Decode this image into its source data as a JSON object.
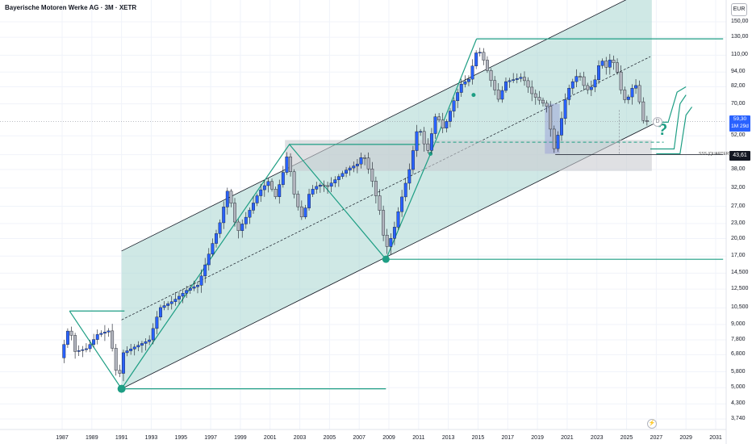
{
  "header": {
    "title": "Bayerische Motoren Werke AG · 3M · XETR",
    "currency": "EUR"
  },
  "price_tag": {
    "value": "59,30",
    "countdown": "1M 29d"
  },
  "level_tag": {
    "value": "43,61",
    "label": "SSS (QUARTER)"
  },
  "markers": {
    "question": "?",
    "d_tag": "D",
    "bolt": "⚡"
  },
  "colors": {
    "up": "#2962ff",
    "down": "#b2b5be",
    "channel_fill": "#a8d5cf",
    "teal": "#1e9e84",
    "box_grey": "#c9cbd1"
  },
  "chart_data": {
    "type": "candlestick",
    "title": "Bayerische Motoren Werke AG · 3M · XETR",
    "y_scale": "log",
    "ylim": [
      3.4,
      175
    ],
    "xlim": [
      1986,
      2032
    ],
    "y_ticks": [
      "150,00",
      "130,00",
      "110,00",
      "94,00",
      "82,00",
      "70,00",
      "52,00",
      "43,61",
      "38,00",
      "32,00",
      "27,00",
      "23,00",
      "20,00",
      "17,00",
      "14,500",
      "12,500",
      "10,500",
      "9,000",
      "7,800",
      "6,800",
      "5,800",
      "5,000",
      "4,300",
      "3,740"
    ],
    "y_tick_values": [
      150,
      130,
      110,
      94,
      82,
      70,
      52,
      43.61,
      38,
      32,
      27,
      23,
      20,
      17,
      14.5,
      12.5,
      10.5,
      9,
      7.8,
      6.8,
      5.8,
      5.0,
      4.3,
      3.74
    ],
    "x_ticks": [
      "1987",
      "1989",
      "1991",
      "1993",
      "1995",
      "1997",
      "1999",
      "2001",
      "2003",
      "2005",
      "2007",
      "2009",
      "2011",
      "2013",
      "2015",
      "2017",
      "2019",
      "2021",
      "2023",
      "2025",
      "2027",
      "2029",
      "2031"
    ],
    "x_tick_values": [
      1987,
      1989,
      1991,
      1993,
      1995,
      1997,
      1999,
      2001,
      2003,
      2005,
      2007,
      2009,
      2011,
      2013,
      2015,
      2017,
      2019,
      2021,
      2023,
      2025,
      2027,
      2029,
      2031
    ],
    "anchors": [
      [
        1987,
        6.6
      ],
      [
        1987.6,
        8.9
      ],
      [
        1988,
        7.0
      ],
      [
        1988.8,
        7.2
      ],
      [
        1989.5,
        8.2
      ],
      [
        1990.3,
        8.5
      ],
      [
        1990.9,
        5.2
      ],
      [
        1991.2,
        6.9
      ],
      [
        1992,
        7.3
      ],
      [
        1993,
        7.8
      ],
      [
        1993.7,
        10.5
      ],
      [
        1994.6,
        11.2
      ],
      [
        1995.6,
        12.5
      ],
      [
        1996.3,
        13.0
      ],
      [
        1996.8,
        16.0
      ],
      [
        1997.3,
        19.5
      ],
      [
        1997.7,
        22.5
      ],
      [
        1998.3,
        32.0
      ],
      [
        1998.9,
        21.0
      ],
      [
        1999.6,
        25.0
      ],
      [
        2000.4,
        31.0
      ],
      [
        2001.0,
        34.0
      ],
      [
        2001.5,
        29.5
      ],
      [
        2002.0,
        37.0
      ],
      [
        2002.3,
        44.0
      ],
      [
        2002.8,
        29.0
      ],
      [
        2003.3,
        24.0
      ],
      [
        2003.8,
        31.0
      ],
      [
        2004.4,
        33.0
      ],
      [
        2005.0,
        32.5
      ],
      [
        2005.6,
        35.0
      ],
      [
        2006.3,
        38.0
      ],
      [
        2007.0,
        40.0
      ],
      [
        2007.4,
        44.0
      ],
      [
        2007.9,
        36.0
      ],
      [
        2008.5,
        26.0
      ],
      [
        2008.9,
        18.0
      ],
      [
        2009.4,
        21.0
      ],
      [
        2009.9,
        28.0
      ],
      [
        2010.5,
        38.0
      ],
      [
        2011.1,
        58.0
      ],
      [
        2011.7,
        44.0
      ],
      [
        2012.3,
        64.0
      ],
      [
        2012.8,
        55.0
      ],
      [
        2013.5,
        72.0
      ],
      [
        2014.0,
        84.0
      ],
      [
        2014.5,
        88.0
      ],
      [
        2015.1,
        118.0
      ],
      [
        2015.5,
        105.0
      ],
      [
        2015.9,
        90.0
      ],
      [
        2016.5,
        73.0
      ],
      [
        2017.0,
        86.0
      ],
      [
        2017.6,
        88.0
      ],
      [
        2018.1,
        90.0
      ],
      [
        2018.8,
        76.0
      ],
      [
        2019.3,
        72.0
      ],
      [
        2019.8,
        68.0
      ],
      [
        2020.2,
        45.0
      ],
      [
        2020.6,
        55.0
      ],
      [
        2021.1,
        78.0
      ],
      [
        2021.5,
        86.0
      ],
      [
        2021.9,
        93.0
      ],
      [
        2022.4,
        79.0
      ],
      [
        2022.9,
        83.0
      ],
      [
        2023.4,
        108.0
      ],
      [
        2023.7,
        97.0
      ],
      [
        2024.1,
        108.0
      ],
      [
        2024.5,
        94.0
      ],
      [
        2024.9,
        72.0
      ],
      [
        2025.3,
        75.0
      ],
      [
        2025.6,
        84.0
      ],
      [
        2025.9,
        82.0
      ],
      [
        2026.1,
        62.0
      ],
      [
        2026.3,
        59.3
      ]
    ]
  }
}
